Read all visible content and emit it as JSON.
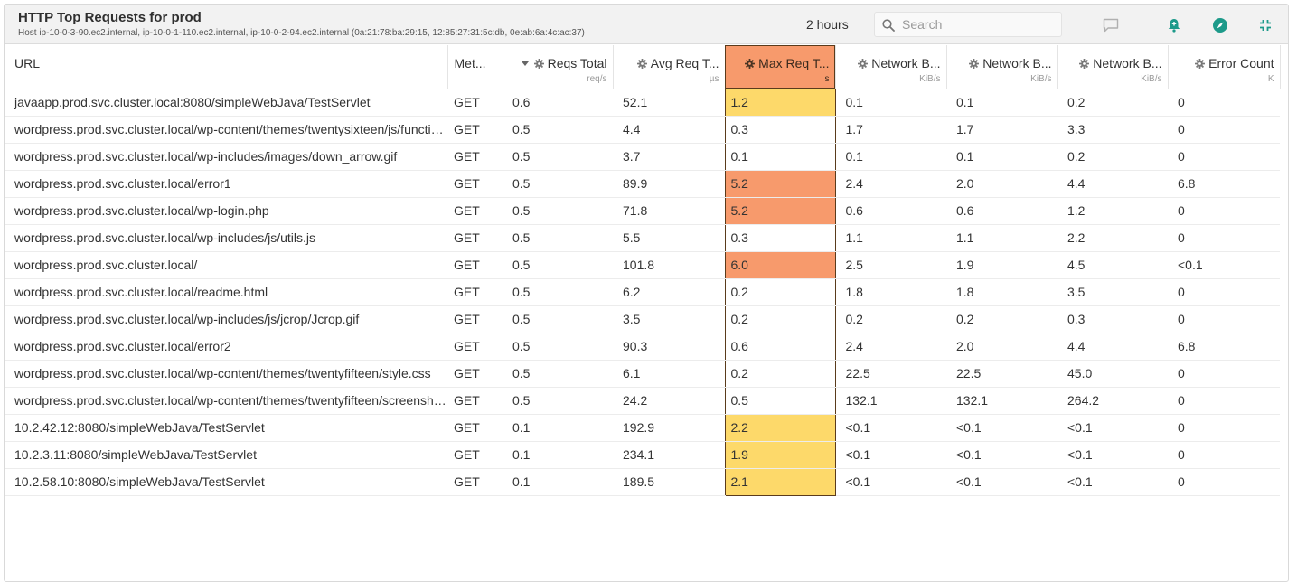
{
  "header": {
    "title": "HTTP Top Requests for prod",
    "subtitle": "Host ip-10-0-3-90.ec2.internal, ip-10-0-1-110.ec2.internal, ip-10-0-2-94.ec2.internal (0a:21:78:ba:29:15, 12:85:27:31:5c:db, 0e:ab:6a:4c:ac:37)",
    "time_range": "2 hours",
    "search_placeholder": "Search",
    "icons": [
      "comment-icon",
      "alert-bell-icon",
      "explore-icon",
      "collapse-icon"
    ]
  },
  "colors": {
    "header_bg": "#f2f2f2",
    "highlight_yellow": "#fdd96a",
    "highlight_orange": "#f79a6c",
    "selected_border": "#5a3b1c",
    "accent_teal": "#1d9a8a"
  },
  "columns": [
    {
      "label": "URL",
      "unit": ""
    },
    {
      "label": "Met...",
      "unit": ""
    },
    {
      "label": "Reqs Total",
      "unit": "req/s",
      "sorted": "desc"
    },
    {
      "label": "Avg Req T...",
      "unit": "µs"
    },
    {
      "label": "Max Req T...",
      "unit": "s",
      "selected": true
    },
    {
      "label": "Network B...",
      "unit": "KiB/s"
    },
    {
      "label": "Network B...",
      "unit": "KiB/s"
    },
    {
      "label": "Network B...",
      "unit": "KiB/s"
    },
    {
      "label": "Error Count",
      "unit": "K"
    }
  ],
  "rows": [
    {
      "url": "javaapp.prod.svc.cluster.local:8080/simpleWebJava/TestServlet",
      "method": "GET",
      "reqs": "0.6",
      "avg": "52.1",
      "max": "1.2",
      "max_level": "yellow",
      "net1": "0.1",
      "net2": "0.1",
      "net3": "0.2",
      "err": "0"
    },
    {
      "url": "wordpress.prod.svc.cluster.local/wp-content/themes/twentysixteen/js/functions.js",
      "method": "GET",
      "reqs": "0.5",
      "avg": "4.4",
      "max": "0.3",
      "max_level": "none",
      "net1": "1.7",
      "net2": "1.7",
      "net3": "3.3",
      "err": "0"
    },
    {
      "url": "wordpress.prod.svc.cluster.local/wp-includes/images/down_arrow.gif",
      "method": "GET",
      "reqs": "0.5",
      "avg": "3.7",
      "max": "0.1",
      "max_level": "none",
      "net1": "0.1",
      "net2": "0.1",
      "net3": "0.2",
      "err": "0"
    },
    {
      "url": "wordpress.prod.svc.cluster.local/error1",
      "method": "GET",
      "reqs": "0.5",
      "avg": "89.9",
      "max": "5.2",
      "max_level": "orange",
      "net1": "2.4",
      "net2": "2.0",
      "net3": "4.4",
      "err": "6.8"
    },
    {
      "url": "wordpress.prod.svc.cluster.local/wp-login.php",
      "method": "GET",
      "reqs": "0.5",
      "avg": "71.8",
      "max": "5.2",
      "max_level": "orange",
      "net1": "0.6",
      "net2": "0.6",
      "net3": "1.2",
      "err": "0"
    },
    {
      "url": "wordpress.prod.svc.cluster.local/wp-includes/js/utils.js",
      "method": "GET",
      "reqs": "0.5",
      "avg": "5.5",
      "max": "0.3",
      "max_level": "none",
      "net1": "1.1",
      "net2": "1.1",
      "net3": "2.2",
      "err": "0"
    },
    {
      "url": "wordpress.prod.svc.cluster.local/",
      "method": "GET",
      "reqs": "0.5",
      "avg": "101.8",
      "max": "6.0",
      "max_level": "orange",
      "net1": "2.5",
      "net2": "1.9",
      "net3": "4.5",
      "err": "<0.1"
    },
    {
      "url": "wordpress.prod.svc.cluster.local/readme.html",
      "method": "GET",
      "reqs": "0.5",
      "avg": "6.2",
      "max": "0.2",
      "max_level": "none",
      "net1": "1.8",
      "net2": "1.8",
      "net3": "3.5",
      "err": "0"
    },
    {
      "url": "wordpress.prod.svc.cluster.local/wp-includes/js/jcrop/Jcrop.gif",
      "method": "GET",
      "reqs": "0.5",
      "avg": "3.5",
      "max": "0.2",
      "max_level": "none",
      "net1": "0.2",
      "net2": "0.2",
      "net3": "0.3",
      "err": "0"
    },
    {
      "url": "wordpress.prod.svc.cluster.local/error2",
      "method": "GET",
      "reqs": "0.5",
      "avg": "90.3",
      "max": "0.6",
      "max_level": "none",
      "net1": "2.4",
      "net2": "2.0",
      "net3": "4.4",
      "err": "6.8"
    },
    {
      "url": "wordpress.prod.svc.cluster.local/wp-content/themes/twentyfifteen/style.css",
      "method": "GET",
      "reqs": "0.5",
      "avg": "6.1",
      "max": "0.2",
      "max_level": "none",
      "net1": "22.5",
      "net2": "22.5",
      "net3": "45.0",
      "err": "0"
    },
    {
      "url": "wordpress.prod.svc.cluster.local/wp-content/themes/twentyfifteen/screenshot.png",
      "method": "GET",
      "reqs": "0.5",
      "avg": "24.2",
      "max": "0.5",
      "max_level": "none",
      "net1": "132.1",
      "net2": "132.1",
      "net3": "264.2",
      "err": "0"
    },
    {
      "url": "10.2.42.12:8080/simpleWebJava/TestServlet",
      "method": "GET",
      "reqs": "0.1",
      "avg": "192.9",
      "max": "2.2",
      "max_level": "yellow",
      "net1": "<0.1",
      "net2": "<0.1",
      "net3": "<0.1",
      "err": "0"
    },
    {
      "url": "10.2.3.11:8080/simpleWebJava/TestServlet",
      "method": "GET",
      "reqs": "0.1",
      "avg": "234.1",
      "max": "1.9",
      "max_level": "yellow",
      "net1": "<0.1",
      "net2": "<0.1",
      "net3": "<0.1",
      "err": "0"
    },
    {
      "url": "10.2.58.10:8080/simpleWebJava/TestServlet",
      "method": "GET",
      "reqs": "0.1",
      "avg": "189.5",
      "max": "2.1",
      "max_level": "yellow",
      "net1": "<0.1",
      "net2": "<0.1",
      "net3": "<0.1",
      "err": "0"
    }
  ]
}
